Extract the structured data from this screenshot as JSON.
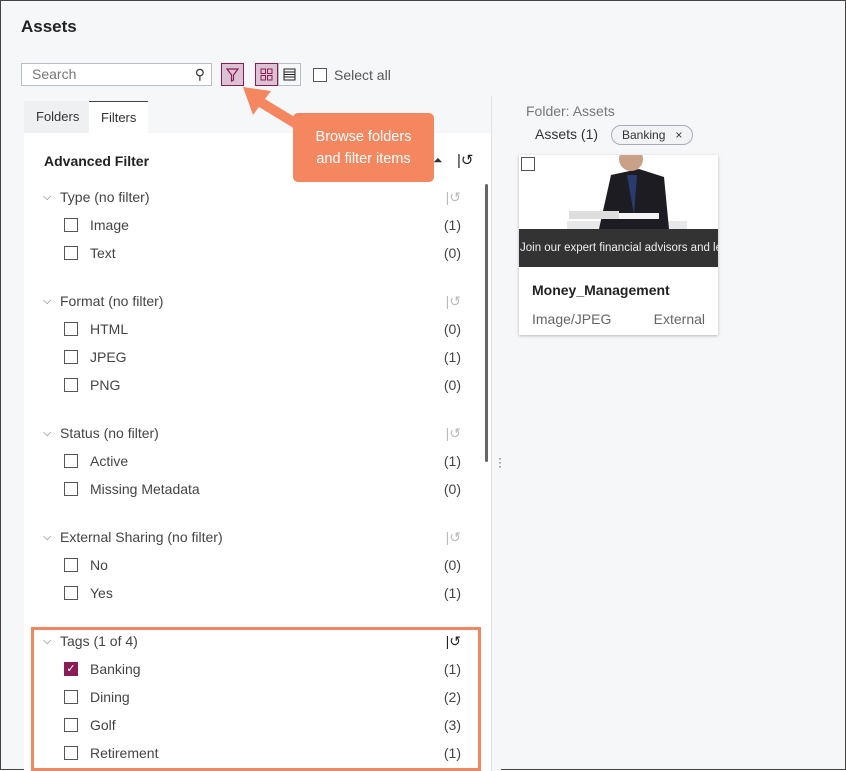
{
  "title": "Assets",
  "toolbar": {
    "search_placeholder": "Search",
    "select_all": "Select all",
    "filter_active": true,
    "view": "grid"
  },
  "tabs": [
    {
      "label": "Folders",
      "active": false
    },
    {
      "label": "Filters",
      "active": true
    }
  ],
  "filter": {
    "heading": "Advanced Filter",
    "sections": [
      {
        "title": "Type (no filter)",
        "items": [
          {
            "label": "Image",
            "count": "(1)",
            "checked": false
          },
          {
            "label": "Text",
            "count": "(0)",
            "checked": false
          }
        ]
      },
      {
        "title": "Format (no filter)",
        "items": [
          {
            "label": "HTML",
            "count": "(0)",
            "checked": false
          },
          {
            "label": "JPEG",
            "count": "(1)",
            "checked": false
          },
          {
            "label": "PNG",
            "count": "(0)",
            "checked": false
          }
        ]
      },
      {
        "title": "Status (no filter)",
        "items": [
          {
            "label": "Active",
            "count": "(1)",
            "checked": false
          },
          {
            "label": "Missing Metadata",
            "count": "(0)",
            "checked": false
          }
        ]
      },
      {
        "title": "External Sharing (no filter)",
        "items": [
          {
            "label": "No",
            "count": "(0)",
            "checked": false
          },
          {
            "label": "Yes",
            "count": "(1)",
            "checked": false
          }
        ]
      },
      {
        "title": "Tags (1 of 4)",
        "items": [
          {
            "label": "Banking",
            "count": "(1)",
            "checked": true
          },
          {
            "label": "Dining",
            "count": "(2)",
            "checked": false
          },
          {
            "label": "Golf",
            "count": "(3)",
            "checked": false
          },
          {
            "label": "Retirement",
            "count": "(1)",
            "checked": false
          }
        ]
      }
    ]
  },
  "callout": {
    "line1": "Browse folders",
    "line2": "and filter items",
    "color": "#f4875f"
  },
  "results": {
    "folder": "Folder: Assets",
    "count": "Assets (1)",
    "chip": "Banking",
    "chip_close": "×",
    "card": {
      "image_caption": "Join our expert financial advisors and learn how you can save for",
      "name": "Money_Management",
      "type": "Image/JPEG",
      "sharing": "External"
    }
  },
  "colors": {
    "accent": "#8a1d55",
    "highlight": "#f0875f"
  }
}
